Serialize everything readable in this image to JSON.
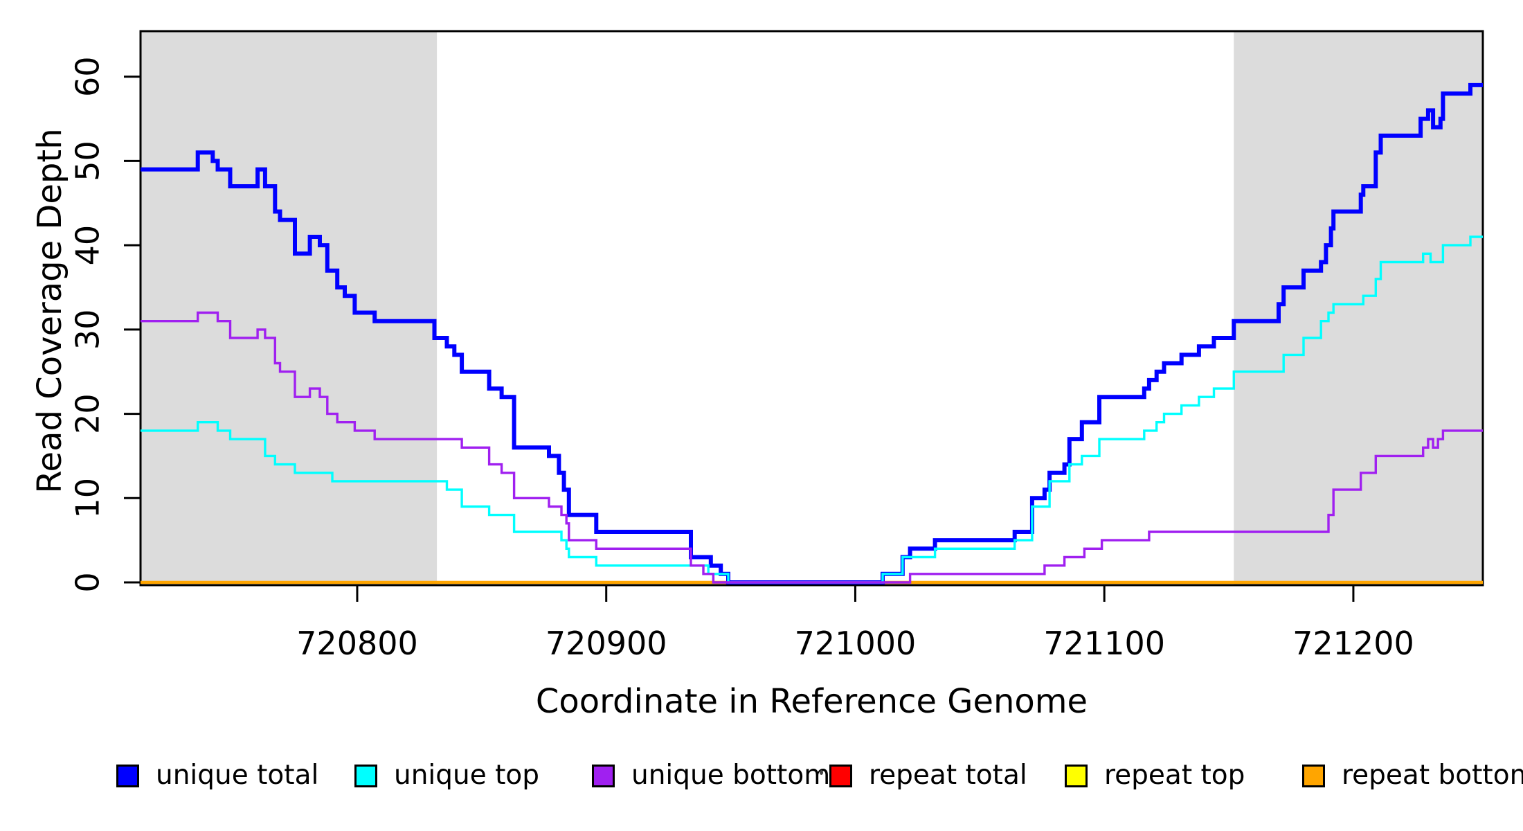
{
  "chart_data": {
    "type": "line",
    "mode": "step",
    "title": "",
    "xlabel": "Coordinate in Reference Genome",
    "ylabel": "Read Coverage Depth",
    "xlim": [
      720713,
      721252
    ],
    "ylim": [
      0,
      65.4
    ],
    "x_ticks": [
      720800,
      720900,
      721000,
      721100,
      721200
    ],
    "y_ticks": [
      0,
      10,
      20,
      30,
      40,
      50,
      60
    ],
    "grid": false,
    "legend_position": "bottom",
    "shade_color": "#DCDCDC",
    "shaded_regions": [
      [
        720713,
        720832
      ],
      [
        721152,
        721252
      ]
    ],
    "series": [
      {
        "name": "repeat total",
        "color": "#FF0000",
        "points": [
          [
            720713,
            0
          ]
        ]
      },
      {
        "name": "repeat top",
        "color": "#FFFF00",
        "points": [
          [
            720713,
            0
          ]
        ]
      },
      {
        "name": "repeat bottom",
        "color": "#FFA500",
        "points": [
          [
            720713,
            0
          ]
        ]
      },
      {
        "name": "unique total",
        "color": "#0000FF",
        "points": [
          [
            720713,
            49
          ],
          [
            720736,
            51
          ],
          [
            720742,
            50
          ],
          [
            720744,
            49
          ],
          [
            720749,
            47
          ],
          [
            720760,
            49
          ],
          [
            720763,
            47
          ],
          [
            720767,
            44
          ],
          [
            720769,
            43
          ],
          [
            720775,
            39
          ],
          [
            720781,
            41
          ],
          [
            720785,
            40
          ],
          [
            720788,
            37
          ],
          [
            720792,
            35
          ],
          [
            720795,
            34
          ],
          [
            720799,
            32
          ],
          [
            720807,
            31
          ],
          [
            720831,
            29
          ],
          [
            720836,
            28
          ],
          [
            720839,
            27
          ],
          [
            720842,
            25
          ],
          [
            720853,
            23
          ],
          [
            720858,
            22
          ],
          [
            720863,
            16
          ],
          [
            720877,
            15
          ],
          [
            720881,
            13
          ],
          [
            720883,
            11
          ],
          [
            720885,
            8
          ],
          [
            720896,
            6
          ],
          [
            720934,
            3
          ],
          [
            720942,
            2
          ],
          [
            720946,
            1
          ],
          [
            720949,
            0
          ],
          [
            721011,
            1
          ],
          [
            721019,
            3
          ],
          [
            721022,
            4
          ],
          [
            721032,
            5
          ],
          [
            721064,
            6
          ],
          [
            721071,
            10
          ],
          [
            721076,
            11
          ],
          [
            721078,
            13
          ],
          [
            721084,
            14
          ],
          [
            721086,
            17
          ],
          [
            721091,
            19
          ],
          [
            721098,
            22
          ],
          [
            721116,
            23
          ],
          [
            721118,
            24
          ],
          [
            721121,
            25
          ],
          [
            721124,
            26
          ],
          [
            721131,
            27
          ],
          [
            721138,
            28
          ],
          [
            721144,
            29
          ],
          [
            721152,
            31
          ],
          [
            721170,
            33
          ],
          [
            721172,
            35
          ],
          [
            721180,
            37
          ],
          [
            721187,
            38
          ],
          [
            721189,
            40
          ],
          [
            721191,
            42
          ],
          [
            721192,
            44
          ],
          [
            721203,
            46
          ],
          [
            721204,
            47
          ],
          [
            721209,
            51
          ],
          [
            721211,
            53
          ],
          [
            721227,
            55
          ],
          [
            721230,
            56
          ],
          [
            721232,
            54
          ],
          [
            721235,
            55
          ],
          [
            721236,
            58
          ],
          [
            721247,
            59
          ]
        ]
      },
      {
        "name": "unique top",
        "color": "#00FFFF",
        "points": [
          [
            720713,
            18
          ],
          [
            720736,
            19
          ],
          [
            720744,
            18
          ],
          [
            720749,
            17
          ],
          [
            720763,
            15
          ],
          [
            720767,
            14
          ],
          [
            720775,
            13
          ],
          [
            720790,
            12
          ],
          [
            720836,
            11
          ],
          [
            720842,
            9
          ],
          [
            720853,
            8
          ],
          [
            720863,
            6
          ],
          [
            720882,
            5
          ],
          [
            720884,
            4
          ],
          [
            720885,
            3
          ],
          [
            720896,
            2
          ],
          [
            720941,
            1
          ],
          [
            720949,
            0
          ],
          [
            721011,
            1
          ],
          [
            721019,
            3
          ],
          [
            721032,
            4
          ],
          [
            721064,
            5
          ],
          [
            721071,
            9
          ],
          [
            721078,
            12
          ],
          [
            721086,
            14
          ],
          [
            721091,
            15
          ],
          [
            721098,
            17
          ],
          [
            721116,
            18
          ],
          [
            721121,
            19
          ],
          [
            721124,
            20
          ],
          [
            721131,
            21
          ],
          [
            721138,
            22
          ],
          [
            721144,
            23
          ],
          [
            721152,
            25
          ],
          [
            721172,
            27
          ],
          [
            721180,
            29
          ],
          [
            721187,
            31
          ],
          [
            721190,
            32
          ],
          [
            721192,
            33
          ],
          [
            721204,
            34
          ],
          [
            721209,
            36
          ],
          [
            721211,
            38
          ],
          [
            721228,
            39
          ],
          [
            721231,
            38
          ],
          [
            721236,
            40
          ],
          [
            721247,
            41
          ]
        ]
      },
      {
        "name": "unique bottom",
        "color": "#A020F0",
        "points": [
          [
            720713,
            31
          ],
          [
            720736,
            32
          ],
          [
            720744,
            31
          ],
          [
            720749,
            29
          ],
          [
            720760,
            30
          ],
          [
            720763,
            29
          ],
          [
            720767,
            26
          ],
          [
            720769,
            25
          ],
          [
            720775,
            22
          ],
          [
            720781,
            23
          ],
          [
            720785,
            22
          ],
          [
            720788,
            20
          ],
          [
            720792,
            19
          ],
          [
            720799,
            18
          ],
          [
            720807,
            17
          ],
          [
            720842,
            16
          ],
          [
            720853,
            14
          ],
          [
            720858,
            13
          ],
          [
            720863,
            10
          ],
          [
            720877,
            9
          ],
          [
            720882,
            8
          ],
          [
            720884,
            7
          ],
          [
            720885,
            5
          ],
          [
            720896,
            4
          ],
          [
            720934,
            2
          ],
          [
            720939,
            1
          ],
          [
            720943,
            0
          ],
          [
            721022,
            1
          ],
          [
            721076,
            2
          ],
          [
            721084,
            3
          ],
          [
            721092,
            4
          ],
          [
            721099,
            5
          ],
          [
            721118,
            6
          ],
          [
            721190,
            8
          ],
          [
            721192,
            11
          ],
          [
            721203,
            13
          ],
          [
            721209,
            15
          ],
          [
            721228,
            16
          ],
          [
            721230,
            17
          ],
          [
            721232,
            16
          ],
          [
            721234,
            17
          ],
          [
            721236,
            18
          ]
        ]
      }
    ]
  },
  "legend": {
    "items": [
      {
        "label": "unique total",
        "color": "#0000FF"
      },
      {
        "label": "unique top",
        "color": "#00FFFF"
      },
      {
        "label": "unique bottom",
        "color": "#A020F0"
      },
      {
        "label": "repeat total",
        "color": "#FF0000"
      },
      {
        "label": "repeat top",
        "color": "#FFFF00"
      },
      {
        "label": "repeat bottom",
        "color": "#FFA500"
      }
    ]
  },
  "axes": {
    "x_title": "Coordinate in Reference Genome",
    "y_title": "Read Coverage Depth"
  }
}
